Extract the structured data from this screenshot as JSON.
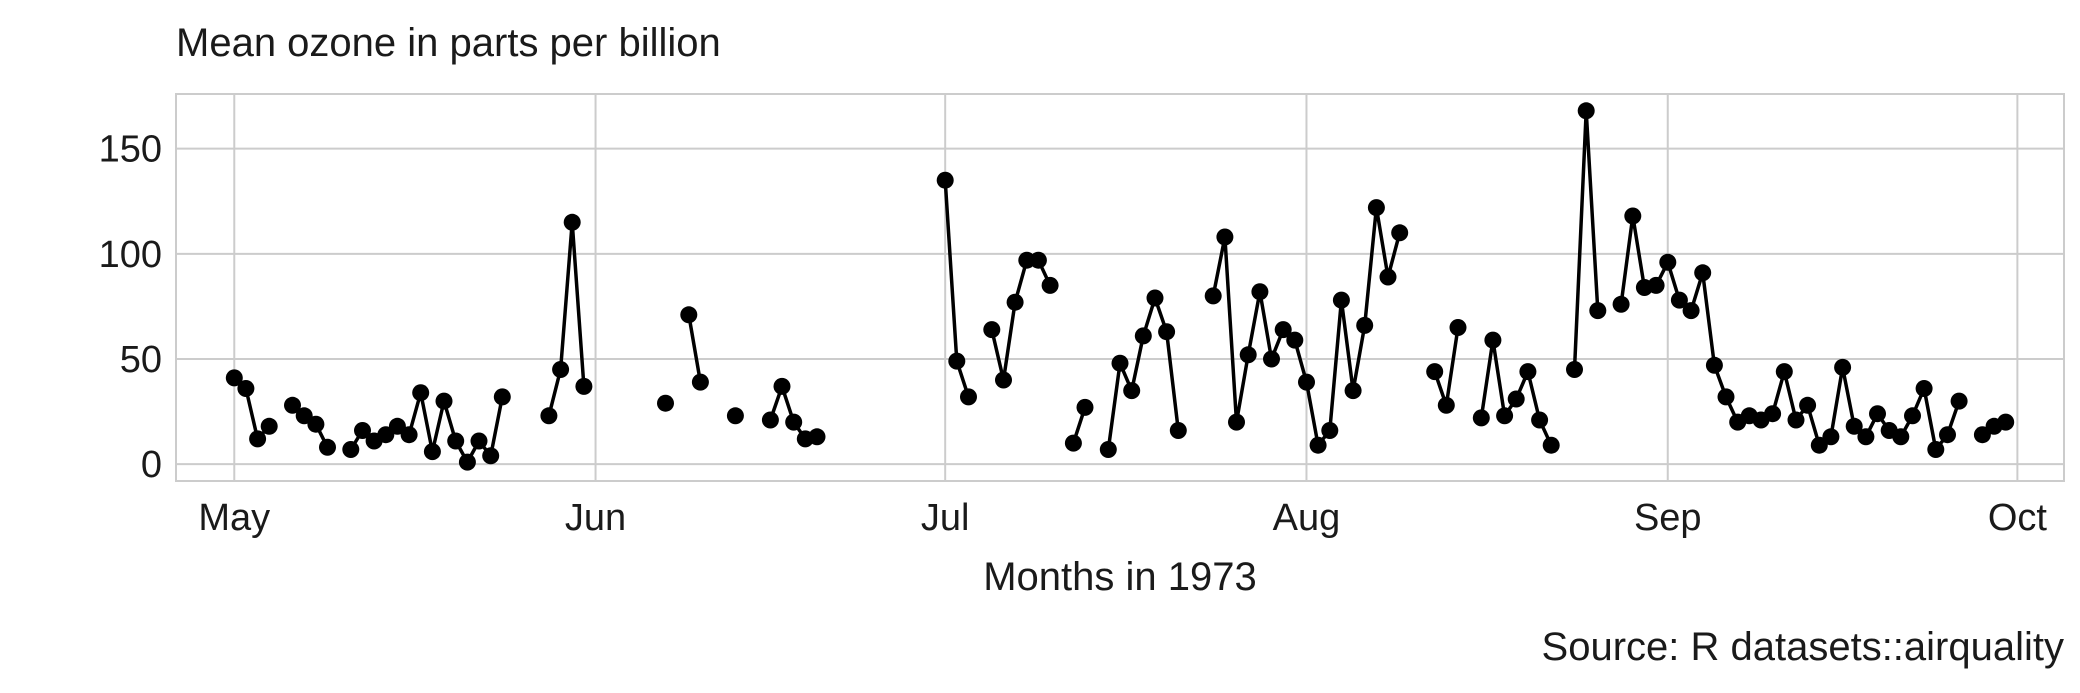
{
  "chart_data": {
    "type": "line",
    "title": "Mean ozone in parts per billion",
    "xlabel": "Months in 1973",
    "ylabel": "",
    "caption": "Source: R datasets::airquality",
    "xlim": [
      "1973-04-26",
      "1973-10-05"
    ],
    "ylim": [
      -8,
      176
    ],
    "grid": true,
    "legend": "none",
    "x_ticks": [
      {
        "label": "May",
        "date": "1973-05-01"
      },
      {
        "label": "Jun",
        "date": "1973-06-01"
      },
      {
        "label": "Jul",
        "date": "1973-07-01"
      },
      {
        "label": "Aug",
        "date": "1973-08-01"
      },
      {
        "label": "Sep",
        "date": "1973-09-01"
      },
      {
        "label": "Oct",
        "date": "1973-10-01"
      }
    ],
    "y_ticks": [
      0,
      50,
      100,
      150
    ],
    "series": [
      {
        "color": "#000000",
        "points": [
          {
            "date": "1973-05-01",
            "value": 41
          },
          {
            "date": "1973-05-02",
            "value": 36
          },
          {
            "date": "1973-05-03",
            "value": 12
          },
          {
            "date": "1973-05-04",
            "value": 18
          },
          {
            "date": "1973-05-05",
            "value": null
          },
          {
            "date": "1973-05-06",
            "value": 28
          },
          {
            "date": "1973-05-07",
            "value": 23
          },
          {
            "date": "1973-05-08",
            "value": 19
          },
          {
            "date": "1973-05-09",
            "value": 8
          },
          {
            "date": "1973-05-10",
            "value": null
          },
          {
            "date": "1973-05-11",
            "value": 7
          },
          {
            "date": "1973-05-12",
            "value": 16
          },
          {
            "date": "1973-05-13",
            "value": 11
          },
          {
            "date": "1973-05-14",
            "value": 14
          },
          {
            "date": "1973-05-15",
            "value": 18
          },
          {
            "date": "1973-05-16",
            "value": 14
          },
          {
            "date": "1973-05-17",
            "value": 34
          },
          {
            "date": "1973-05-18",
            "value": 6
          },
          {
            "date": "1973-05-19",
            "value": 30
          },
          {
            "date": "1973-05-20",
            "value": 11
          },
          {
            "date": "1973-05-21",
            "value": 1
          },
          {
            "date": "1973-05-22",
            "value": 11
          },
          {
            "date": "1973-05-23",
            "value": 4
          },
          {
            "date": "1973-05-24",
            "value": 32
          },
          {
            "date": "1973-05-25",
            "value": null
          },
          {
            "date": "1973-05-26",
            "value": null
          },
          {
            "date": "1973-05-27",
            "value": null
          },
          {
            "date": "1973-05-28",
            "value": 23
          },
          {
            "date": "1973-05-29",
            "value": 45
          },
          {
            "date": "1973-05-30",
            "value": 115
          },
          {
            "date": "1973-05-31",
            "value": 37
          },
          {
            "date": "1973-06-01",
            "value": null
          },
          {
            "date": "1973-06-02",
            "value": null
          },
          {
            "date": "1973-06-03",
            "value": null
          },
          {
            "date": "1973-06-04",
            "value": null
          },
          {
            "date": "1973-06-05",
            "value": null
          },
          {
            "date": "1973-06-06",
            "value": null
          },
          {
            "date": "1973-06-07",
            "value": 29
          },
          {
            "date": "1973-06-08",
            "value": null
          },
          {
            "date": "1973-06-09",
            "value": 71
          },
          {
            "date": "1973-06-10",
            "value": 39
          },
          {
            "date": "1973-06-11",
            "value": null
          },
          {
            "date": "1973-06-12",
            "value": null
          },
          {
            "date": "1973-06-13",
            "value": 23
          },
          {
            "date": "1973-06-14",
            "value": null
          },
          {
            "date": "1973-06-15",
            "value": null
          },
          {
            "date": "1973-06-16",
            "value": 21
          },
          {
            "date": "1973-06-17",
            "value": 37
          },
          {
            "date": "1973-06-18",
            "value": 20
          },
          {
            "date": "1973-06-19",
            "value": 12
          },
          {
            "date": "1973-06-20",
            "value": 13
          },
          {
            "date": "1973-06-21",
            "value": null
          },
          {
            "date": "1973-06-22",
            "value": null
          },
          {
            "date": "1973-06-23",
            "value": null
          },
          {
            "date": "1973-06-24",
            "value": null
          },
          {
            "date": "1973-06-25",
            "value": null
          },
          {
            "date": "1973-06-26",
            "value": null
          },
          {
            "date": "1973-06-27",
            "value": null
          },
          {
            "date": "1973-06-28",
            "value": null
          },
          {
            "date": "1973-06-29",
            "value": null
          },
          {
            "date": "1973-06-30",
            "value": null
          },
          {
            "date": "1973-07-01",
            "value": 135
          },
          {
            "date": "1973-07-02",
            "value": 49
          },
          {
            "date": "1973-07-03",
            "value": 32
          },
          {
            "date": "1973-07-04",
            "value": null
          },
          {
            "date": "1973-07-05",
            "value": 64
          },
          {
            "date": "1973-07-06",
            "value": 40
          },
          {
            "date": "1973-07-07",
            "value": 77
          },
          {
            "date": "1973-07-08",
            "value": 97
          },
          {
            "date": "1973-07-09",
            "value": 97
          },
          {
            "date": "1973-07-10",
            "value": 85
          },
          {
            "date": "1973-07-11",
            "value": null
          },
          {
            "date": "1973-07-12",
            "value": 10
          },
          {
            "date": "1973-07-13",
            "value": 27
          },
          {
            "date": "1973-07-14",
            "value": null
          },
          {
            "date": "1973-07-15",
            "value": 7
          },
          {
            "date": "1973-07-16",
            "value": 48
          },
          {
            "date": "1973-07-17",
            "value": 35
          },
          {
            "date": "1973-07-18",
            "value": 61
          },
          {
            "date": "1973-07-19",
            "value": 79
          },
          {
            "date": "1973-07-20",
            "value": 63
          },
          {
            "date": "1973-07-21",
            "value": 16
          },
          {
            "date": "1973-07-22",
            "value": null
          },
          {
            "date": "1973-07-23",
            "value": null
          },
          {
            "date": "1973-07-24",
            "value": 80
          },
          {
            "date": "1973-07-25",
            "value": 108
          },
          {
            "date": "1973-07-26",
            "value": 20
          },
          {
            "date": "1973-07-27",
            "value": 52
          },
          {
            "date": "1973-07-28",
            "value": 82
          },
          {
            "date": "1973-07-29",
            "value": 50
          },
          {
            "date": "1973-07-30",
            "value": 64
          },
          {
            "date": "1973-07-31",
            "value": 59
          },
          {
            "date": "1973-08-01",
            "value": 39
          },
          {
            "date": "1973-08-02",
            "value": 9
          },
          {
            "date": "1973-08-03",
            "value": 16
          },
          {
            "date": "1973-08-04",
            "value": 78
          },
          {
            "date": "1973-08-05",
            "value": 35
          },
          {
            "date": "1973-08-06",
            "value": 66
          },
          {
            "date": "1973-08-07",
            "value": 122
          },
          {
            "date": "1973-08-08",
            "value": 89
          },
          {
            "date": "1973-08-09",
            "value": 110
          },
          {
            "date": "1973-08-10",
            "value": null
          },
          {
            "date": "1973-08-11",
            "value": null
          },
          {
            "date": "1973-08-12",
            "value": 44
          },
          {
            "date": "1973-08-13",
            "value": 28
          },
          {
            "date": "1973-08-14",
            "value": 65
          },
          {
            "date": "1973-08-15",
            "value": null
          },
          {
            "date": "1973-08-16",
            "value": 22
          },
          {
            "date": "1973-08-17",
            "value": 59
          },
          {
            "date": "1973-08-18",
            "value": 23
          },
          {
            "date": "1973-08-19",
            "value": 31
          },
          {
            "date": "1973-08-20",
            "value": 44
          },
          {
            "date": "1973-08-21",
            "value": 21
          },
          {
            "date": "1973-08-22",
            "value": 9
          },
          {
            "date": "1973-08-23",
            "value": null
          },
          {
            "date": "1973-08-24",
            "value": 45
          },
          {
            "date": "1973-08-25",
            "value": 168
          },
          {
            "date": "1973-08-26",
            "value": 73
          },
          {
            "date": "1973-08-27",
            "value": null
          },
          {
            "date": "1973-08-28",
            "value": 76
          },
          {
            "date": "1973-08-29",
            "value": 118
          },
          {
            "date": "1973-08-30",
            "value": 84
          },
          {
            "date": "1973-08-31",
            "value": 85
          },
          {
            "date": "1973-09-01",
            "value": 96
          },
          {
            "date": "1973-09-02",
            "value": 78
          },
          {
            "date": "1973-09-03",
            "value": 73
          },
          {
            "date": "1973-09-04",
            "value": 91
          },
          {
            "date": "1973-09-05",
            "value": 47
          },
          {
            "date": "1973-09-06",
            "value": 32
          },
          {
            "date": "1973-09-07",
            "value": 20
          },
          {
            "date": "1973-09-08",
            "value": 23
          },
          {
            "date": "1973-09-09",
            "value": 21
          },
          {
            "date": "1973-09-10",
            "value": 24
          },
          {
            "date": "1973-09-11",
            "value": 44
          },
          {
            "date": "1973-09-12",
            "value": 21
          },
          {
            "date": "1973-09-13",
            "value": 28
          },
          {
            "date": "1973-09-14",
            "value": 9
          },
          {
            "date": "1973-09-15",
            "value": 13
          },
          {
            "date": "1973-09-16",
            "value": 46
          },
          {
            "date": "1973-09-17",
            "value": 18
          },
          {
            "date": "1973-09-18",
            "value": 13
          },
          {
            "date": "1973-09-19",
            "value": 24
          },
          {
            "date": "1973-09-20",
            "value": 16
          },
          {
            "date": "1973-09-21",
            "value": 13
          },
          {
            "date": "1973-09-22",
            "value": 23
          },
          {
            "date": "1973-09-23",
            "value": 36
          },
          {
            "date": "1973-09-24",
            "value": 7
          },
          {
            "date": "1973-09-25",
            "value": 14
          },
          {
            "date": "1973-09-26",
            "value": 30
          },
          {
            "date": "1973-09-27",
            "value": null
          },
          {
            "date": "1973-09-28",
            "value": 14
          },
          {
            "date": "1973-09-29",
            "value": 18
          },
          {
            "date": "1973-09-30",
            "value": 20
          }
        ]
      }
    ]
  }
}
